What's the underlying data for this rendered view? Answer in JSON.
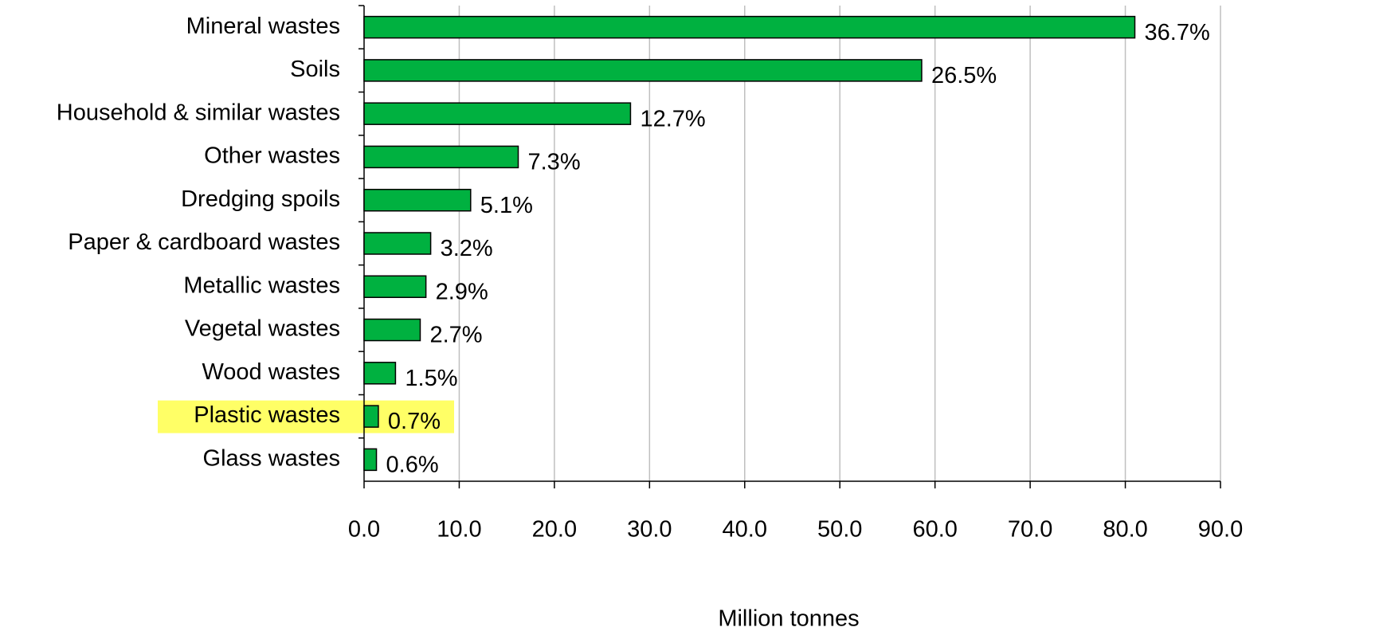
{
  "chart_data": {
    "type": "hbar",
    "x_axis_label": "Million tonnes",
    "categories": [
      "Mineral wastes",
      "Soils",
      "Household & similar wastes",
      "Other wastes",
      "Dredging spoils",
      "Paper & cardboard wastes",
      "Metallic wastes",
      "Vegetal wastes",
      "Wood wastes",
      "Plastic wastes",
      "Glass wastes"
    ],
    "values": [
      81.0,
      58.6,
      28.0,
      16.2,
      11.2,
      7.0,
      6.5,
      5.9,
      3.3,
      1.5,
      1.3
    ],
    "share_labels": [
      "36.7%",
      "26.5%",
      "12.7%",
      "7.3%",
      "5.1%",
      "3.2%",
      "2.9%",
      "2.7%",
      "1.5%",
      "0.7%",
      "0.6%"
    ],
    "color": "#00b140",
    "highlight": 9,
    "highlight_color": "#ffff66",
    "xlim": [
      0,
      90
    ],
    "xticks": [
      {
        "value": 0,
        "label": "0.0"
      },
      {
        "value": 10,
        "label": "10.0"
      },
      {
        "value": 20,
        "label": "20.0"
      },
      {
        "value": 30,
        "label": "30.0"
      },
      {
        "value": 40,
        "label": "40.0"
      },
      {
        "value": 50,
        "label": "50.0"
      },
      {
        "value": 60,
        "label": "60.0"
      },
      {
        "value": 70,
        "label": "70.0"
      },
      {
        "value": 80,
        "label": "80.0"
      },
      {
        "value": 90,
        "label": "90.0"
      }
    ],
    "grid": true
  }
}
